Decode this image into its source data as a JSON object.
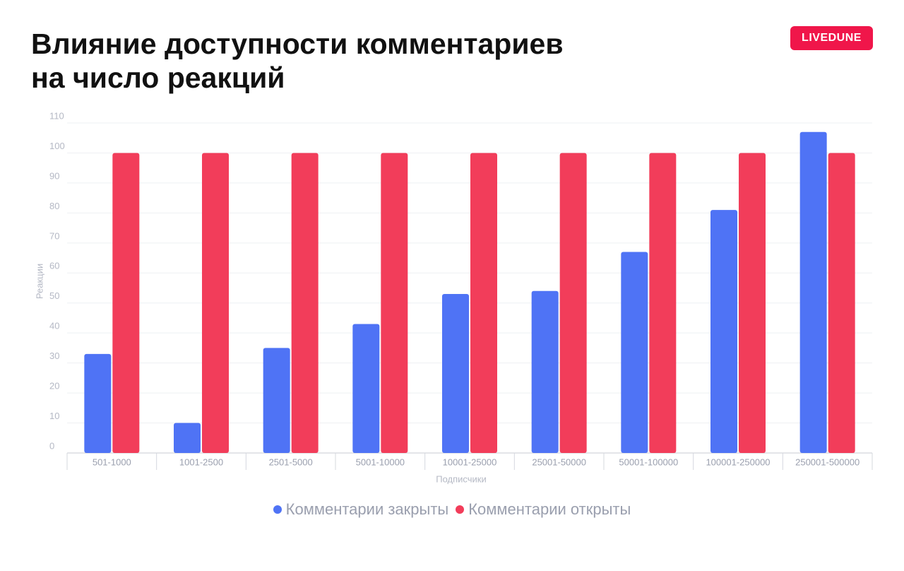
{
  "chart_data": {
    "type": "bar",
    "title": "Влияние доступности комментариев на число реакций",
    "logo": "LIVEDUNE",
    "y_label": "Реакции",
    "x_label": "Подписчики",
    "categories": [
      "501-1000",
      "1001-2500",
      "2501-5000",
      "5001-10000",
      "10001-25000",
      "25001-50000",
      "50001-100000",
      "100001-250000",
      "250001-500000"
    ],
    "series": [
      {
        "name": "Комментарии закрыты",
        "color": "#4f73f5",
        "values": [
          33,
          10,
          35,
          43,
          53,
          54,
          67,
          81,
          107
        ]
      },
      {
        "name": "Комментарии открыты",
        "color": "#f23d5a",
        "values": [
          100,
          100,
          100,
          100,
          100,
          100,
          100,
          100,
          100
        ]
      }
    ],
    "ylim": [
      0,
      110
    ],
    "yticks": [
      0,
      10,
      20,
      30,
      40,
      50,
      60,
      70,
      80,
      90,
      100,
      110
    ],
    "grid": true
  }
}
